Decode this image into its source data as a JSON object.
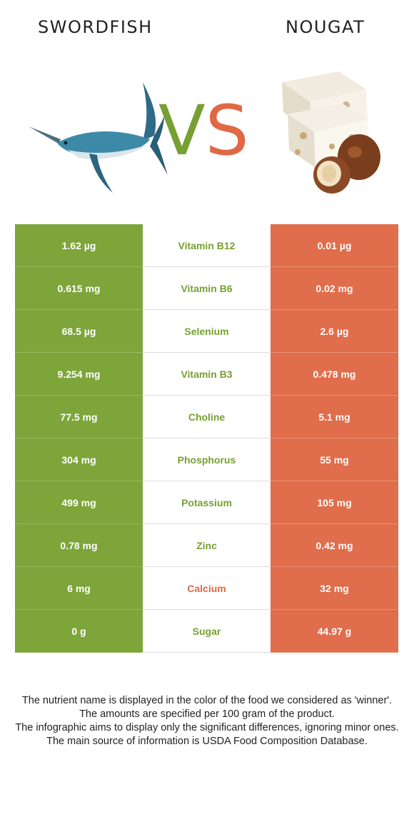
{
  "header": {
    "left_food": "SWORDFISH",
    "right_food": "NOUGAT",
    "vs_v": "V",
    "vs_s": "S"
  },
  "colors": {
    "left_winner": "#7da53a",
    "right_winner": "#e06d4b"
  },
  "rows": [
    {
      "left": "1.62 µg",
      "nutrient": "Vitamin B12",
      "right": "0.01 µg",
      "winner": "left"
    },
    {
      "left": "0.615 mg",
      "nutrient": "Vitamin B6",
      "right": "0.02 mg",
      "winner": "left"
    },
    {
      "left": "68.5 µg",
      "nutrient": "Selenium",
      "right": "2.6 µg",
      "winner": "left"
    },
    {
      "left": "9.254 mg",
      "nutrient": "Vitamin B3",
      "right": "0.478 mg",
      "winner": "left"
    },
    {
      "left": "77.5 mg",
      "nutrient": "Choline",
      "right": "5.1 mg",
      "winner": "left"
    },
    {
      "left": "304 mg",
      "nutrient": "Phosphorus",
      "right": "55 mg",
      "winner": "left"
    },
    {
      "left": "499 mg",
      "nutrient": "Potassium",
      "right": "105 mg",
      "winner": "left"
    },
    {
      "left": "0.78 mg",
      "nutrient": "Zinc",
      "right": "0.42 mg",
      "winner": "left"
    },
    {
      "left": "6 mg",
      "nutrient": "Calcium",
      "right": "32 mg",
      "winner": "right"
    },
    {
      "left": "0 g",
      "nutrient": "Sugar",
      "right": "44.97 g",
      "winner": "left"
    }
  ],
  "footer": {
    "line1": "The nutrient name is displayed in the color of the food we considered as 'winner'.",
    "line2": "The amounts are specified per 100 gram of the product.",
    "line3": "The infographic aims to display only the significant differences, ignoring minor ones.",
    "line4": "The main source of information is USDA Food Composition Database."
  }
}
